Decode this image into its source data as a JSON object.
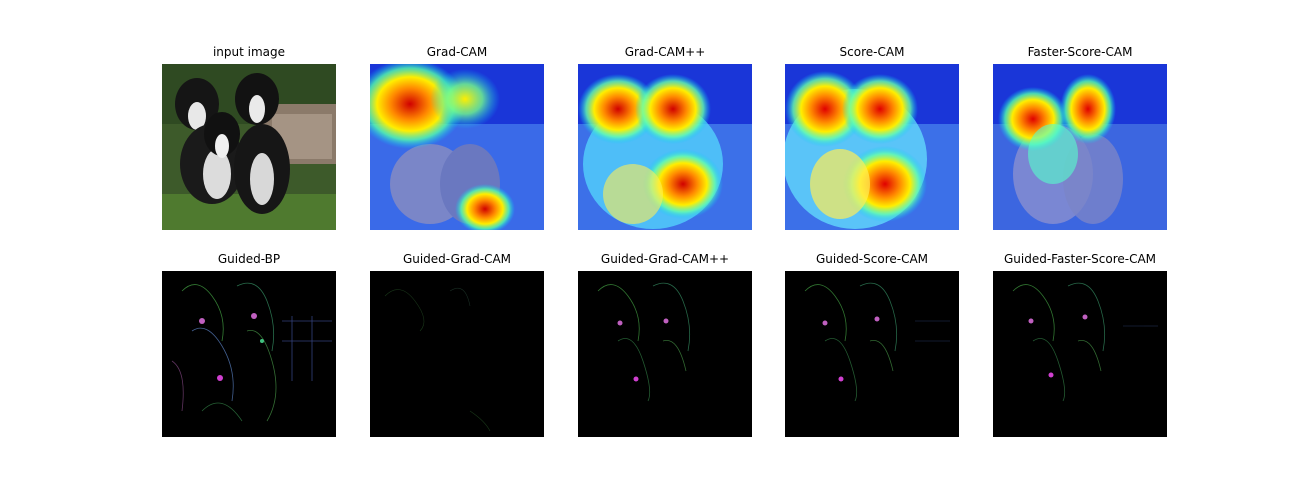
{
  "figure": {
    "rows": [
      {
        "panels": [
          {
            "title": "input image",
            "kind": "photo"
          },
          {
            "title": "Grad-CAM",
            "kind": "heatmap"
          },
          {
            "title": "Grad-CAM++",
            "kind": "heatmap"
          },
          {
            "title": "Score-CAM",
            "kind": "heatmap"
          },
          {
            "title": "Faster-Score-CAM",
            "kind": "heatmap"
          }
        ]
      },
      {
        "panels": [
          {
            "title": "Guided-BP",
            "kind": "guided"
          },
          {
            "title": "Guided-Grad-CAM",
            "kind": "guided"
          },
          {
            "title": "Guided-Grad-CAM++",
            "kind": "guided"
          },
          {
            "title": "Guided-Score-CAM",
            "kind": "guided"
          },
          {
            "title": "Guided-Faster-Score-CAM",
            "kind": "guided"
          }
        ]
      }
    ]
  }
}
